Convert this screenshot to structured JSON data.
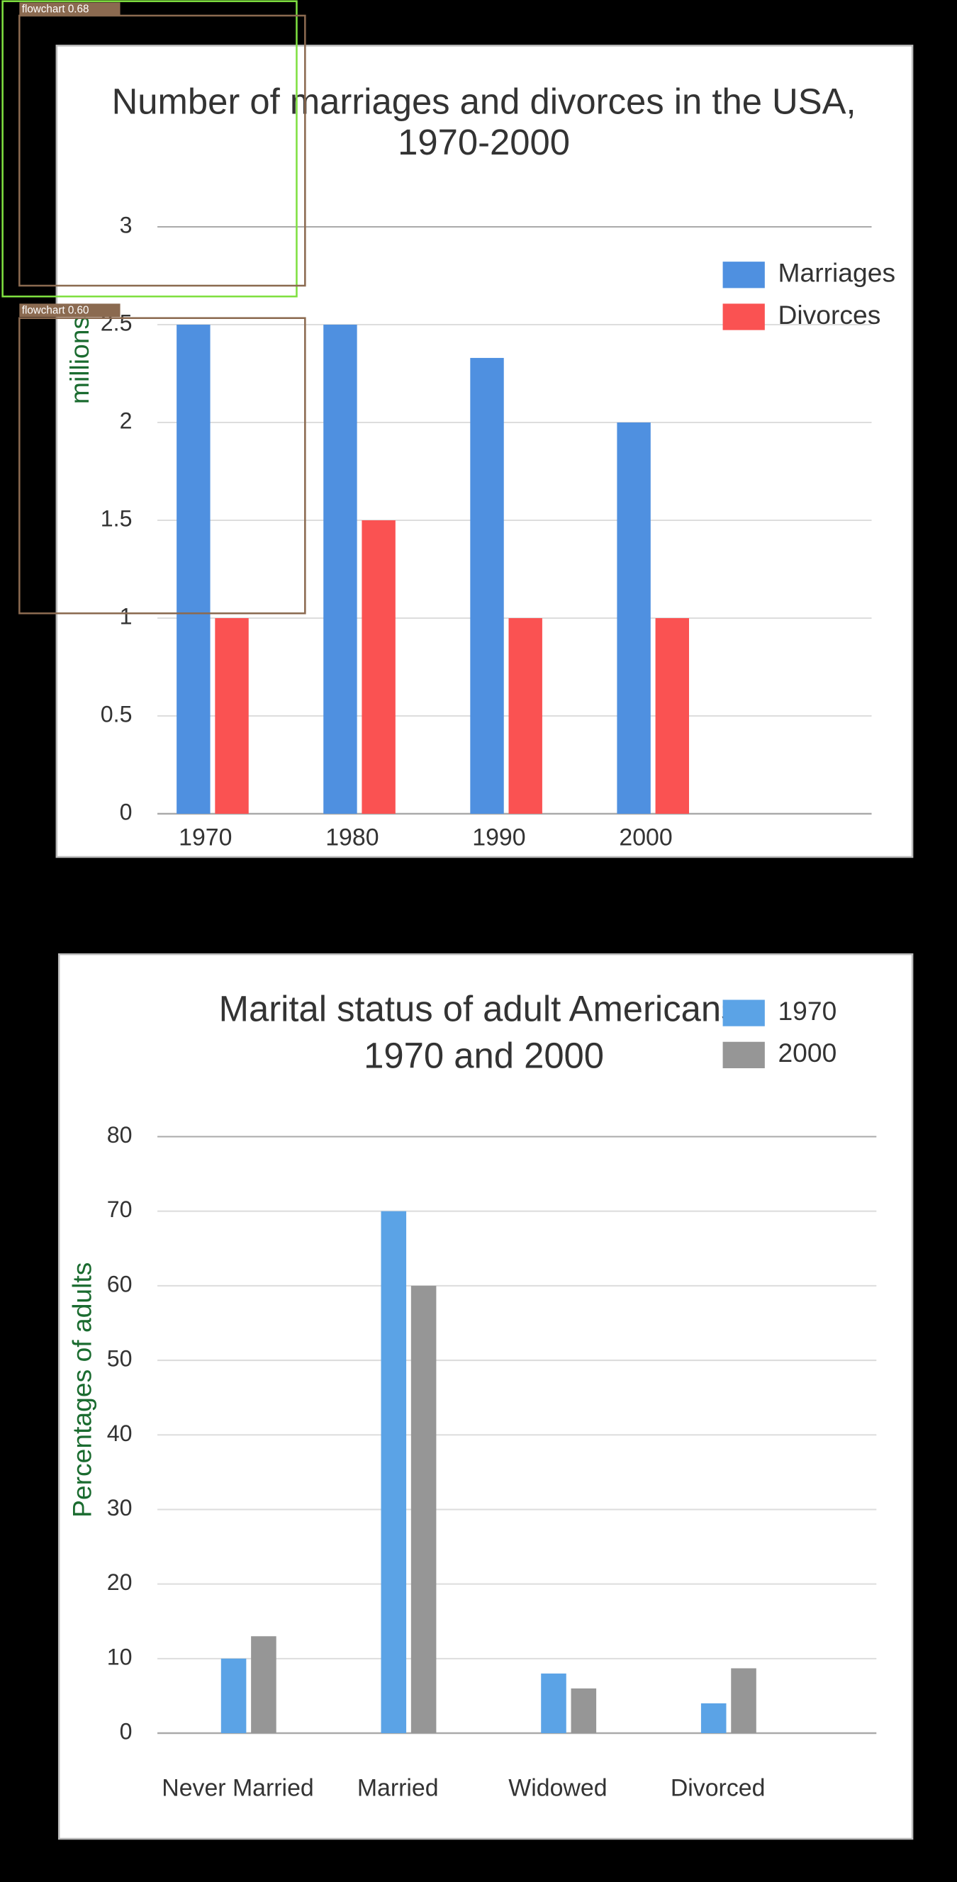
{
  "chart_data": [
    {
      "type": "bar",
      "title": "Number of marriages and divorces in the USA, 1970-2000",
      "y_label": "millions",
      "categories": [
        "1970",
        "1980",
        "1990",
        "2000"
      ],
      "series": [
        {
          "name": "Marriages",
          "color": "#4f90e0",
          "values": [
            2.5,
            2.5,
            2.33,
            2.0
          ]
        },
        {
          "name": "Divorces",
          "color": "#fa5252",
          "values": [
            1,
            1.5,
            1,
            1
          ]
        }
      ],
      "ylim": [
        0,
        3
      ],
      "yticks": [
        0,
        0.5,
        1,
        1.5,
        2,
        2.5,
        3
      ],
      "grid": true,
      "legend": "top-right"
    },
    {
      "type": "bar",
      "title": "Marital status of adult Americans, 1970 and 2000",
      "y_label": "Percentages of adults",
      "categories": [
        "Never Married",
        "Married",
        "Widowed",
        "Divorced"
      ],
      "series": [
        {
          "name": "1970",
          "color": "#5ba3e6",
          "values": [
            10,
            70,
            8,
            4
          ]
        },
        {
          "name": "2000",
          "color": "#969696",
          "values": [
            13,
            60,
            6,
            8.7
          ]
        }
      ],
      "ylim": [
        0,
        80
      ],
      "yticks": [
        0,
        10,
        20,
        30,
        40,
        50,
        60,
        70,
        80
      ],
      "grid": true,
      "legend": "top-right"
    }
  ],
  "overlays": [
    {
      "label": "flowchart 0.68"
    },
    {
      "label": "flowchart 0.60"
    }
  ]
}
